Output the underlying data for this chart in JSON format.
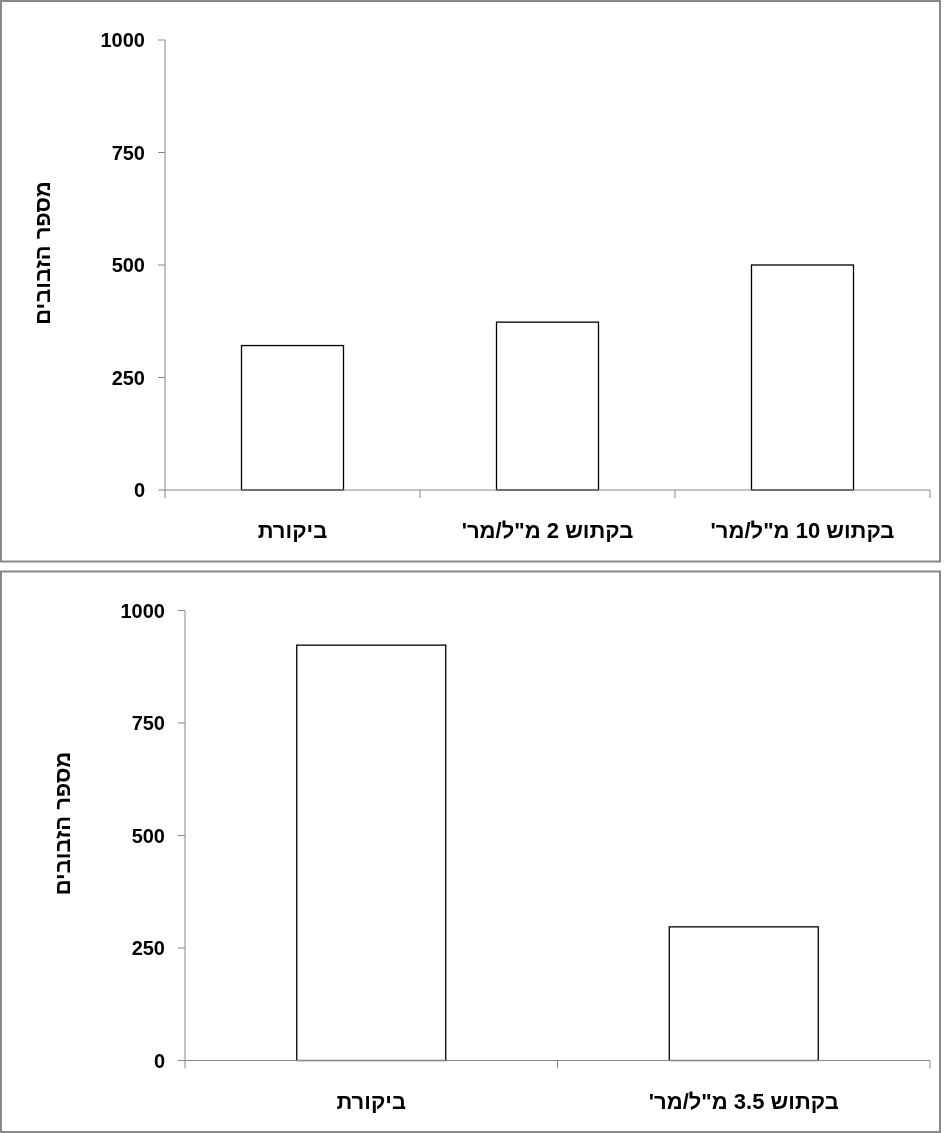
{
  "chart_data": [
    {
      "type": "bar",
      "ylabel": "מספר הזבובים",
      "categories": [
        "ביקורת",
        "בקתוש 2 מ\"ל/מר'",
        "בקתוש 10 מ\"ל/מר'"
      ],
      "values": [
        321,
        373,
        500
      ],
      "color": "#ffffff",
      "ylim": [
        0,
        1000
      ],
      "yticks": [
        0,
        250,
        500,
        750,
        1000
      ],
      "grid": false
    },
    {
      "type": "bar",
      "ylabel": "מספר הזבובים",
      "categories": [
        "ביקורת",
        "בקתוש 3.5 מ\"ל/מר'"
      ],
      "values": [
        923,
        297
      ],
      "color": "#ffffff",
      "ylim": [
        0,
        1000
      ],
      "yticks": [
        0,
        250,
        500,
        750,
        1000
      ],
      "grid": false
    }
  ]
}
